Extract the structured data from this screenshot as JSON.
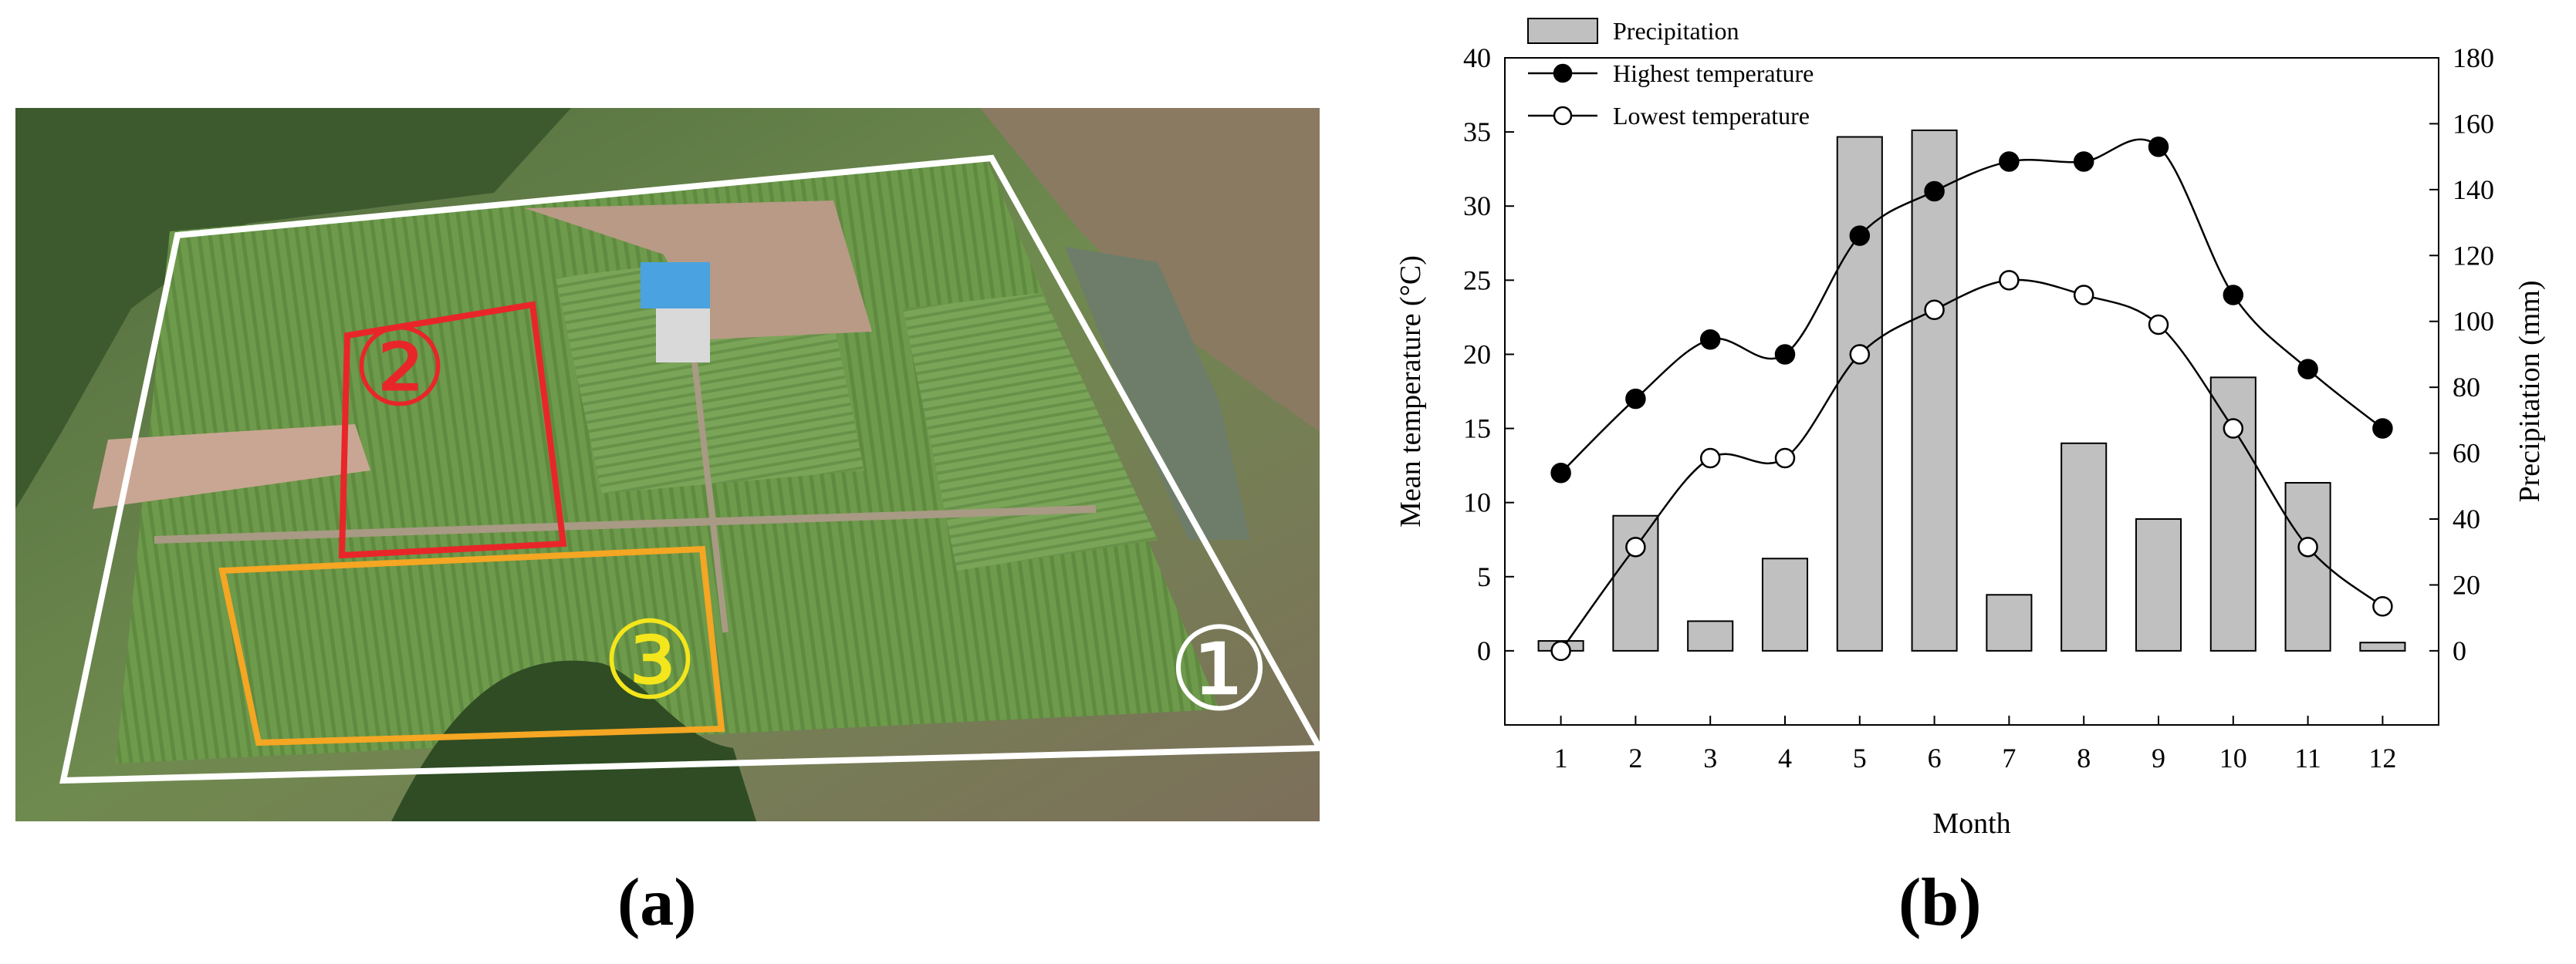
{
  "panel_a": {
    "caption": "(a)",
    "zone_labels": [
      {
        "text": "①",
        "color": "#ffffff"
      },
      {
        "text": "②",
        "color": "#e8262a"
      },
      {
        "text": "③",
        "color": "#f4e61c"
      }
    ],
    "outline_colors": {
      "zone1": "#ffffff",
      "zone2": "#e8262a",
      "zone3": "#f5a623"
    }
  },
  "panel_b": {
    "caption": "(b)",
    "chart_data": {
      "type": "bar+line",
      "categories": [
        "1",
        "2",
        "3",
        "4",
        "5",
        "6",
        "7",
        "8",
        "9",
        "10",
        "11",
        "12"
      ],
      "xlabel": "Month",
      "ylabel_left": "Mean temperature (°C)",
      "ylabel_right": "Precipitation (mm)",
      "ylim_left": [
        -5,
        40
      ],
      "ylim_right": [
        0,
        180
      ],
      "yticks_left": [
        0,
        5,
        10,
        15,
        20,
        25,
        30,
        35,
        40
      ],
      "yticks_right": [
        0,
        20,
        40,
        60,
        80,
        100,
        120,
        140,
        160,
        180
      ],
      "legend_position": "top-left",
      "series": [
        {
          "name": "Precipitation",
          "kind": "bar",
          "axis": "right",
          "color": "#c0c0c0",
          "values": [
            3,
            41,
            9,
            28,
            156,
            158,
            17,
            63,
            40,
            83,
            51,
            2.5
          ]
        },
        {
          "name": "Highest temperature",
          "kind": "line",
          "axis": "left",
          "marker": "filled",
          "values": [
            12,
            17,
            21,
            20,
            28,
            31,
            33,
            33,
            34,
            24,
            19,
            15
          ]
        },
        {
          "name": "Lowest temperature",
          "kind": "line",
          "axis": "left",
          "marker": "open",
          "values": [
            0,
            7,
            13,
            13,
            20,
            23,
            25,
            24,
            22,
            15,
            7,
            3
          ]
        }
      ]
    }
  }
}
